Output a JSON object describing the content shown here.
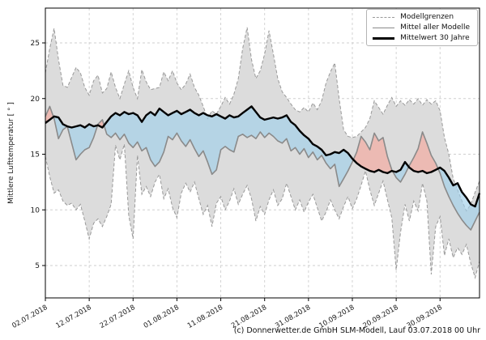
{
  "chart_data": {
    "type": "line",
    "title": "",
    "ylabel": "Mittlere Lufttemperatur [ ° ]",
    "xlabel": "",
    "caption": "(c) Donnerwetter.de GmbH SLM-Modell, Lauf 03.07.2018 00 Uhr",
    "grid": true,
    "legend_position": "upper right",
    "legend": [
      {
        "label": "Modellgrenzen",
        "style": "dashed-gray"
      },
      {
        "label": "Mittel aller Modelle",
        "style": "solid-gray"
      },
      {
        "label": "Mittelwert 30 Jahre",
        "style": "solid-black-thick"
      }
    ],
    "x_tick_labels": [
      "02.07.2018",
      "12.07.2018",
      "22.07.2018",
      "01.08.2018",
      "11.08.2018",
      "21.08.2018",
      "31.08.2018",
      "10.09.2018",
      "20.09.2018",
      "30.09.2018"
    ],
    "x_tick_days": [
      0,
      10,
      20,
      30,
      40,
      50,
      60,
      70,
      80,
      90
    ],
    "y_ticks": [
      5,
      10,
      15,
      20,
      25
    ],
    "ylim": [
      2.0,
      28.0
    ],
    "colors": {
      "band_fill": "#dcdcdc",
      "band_edge": "#999999",
      "model_mean_line": "#8a8a8a",
      "climate_mean_line": "#000000",
      "warm_fill": "#f5a79d",
      "cold_fill": "#9fd0ea",
      "fill_opacity": 0.65,
      "grid_line": "#cfcfcf"
    },
    "series": [
      {
        "name": "Modellgrenzen oben",
        "role": "upper_bound",
        "values": [
          22.3,
          24.5,
          26.3,
          23.5,
          21.2,
          21.0,
          21.9,
          22.8,
          22.3,
          21.0,
          20.3,
          21.6,
          22.1,
          20.5,
          20.9,
          22.4,
          21.0,
          20.0,
          21.3,
          22.5,
          21.0,
          20.0,
          22.6,
          21.5,
          20.8,
          20.9,
          21.0,
          22.4,
          21.6,
          22.5,
          21.4,
          20.8,
          21.3,
          22.2,
          21.0,
          20.3,
          19.3,
          18.2,
          18.9,
          18.6,
          19.3,
          20.1,
          19.5,
          20.4,
          21.8,
          24.5,
          26.4,
          23.5,
          21.8,
          22.5,
          24.0,
          26.1,
          24.0,
          21.8,
          20.6,
          20.1,
          19.5,
          19.0,
          18.8,
          19.2,
          18.8,
          19.6,
          19.0,
          19.8,
          21.4,
          22.4,
          23.2,
          20.0,
          17.2,
          16.6,
          16.5,
          16.6,
          17.0,
          17.4,
          18.2,
          19.8,
          19.2,
          18.6,
          19.4,
          20.1,
          19.3,
          19.8,
          19.4,
          19.9,
          19.5,
          20.0,
          19.4,
          19.9,
          19.5,
          19.8,
          18.9,
          16.5,
          15.0,
          12.8,
          11.8,
          10.8,
          9.9,
          10.5,
          11.6,
          12.6
        ]
      },
      {
        "name": "Modellgrenzen unten",
        "role": "lower_bound",
        "values": [
          14.8,
          13.0,
          11.5,
          11.8,
          10.8,
          10.4,
          10.6,
          10.0,
          10.5,
          9.0,
          7.4,
          8.8,
          9.2,
          8.5,
          9.4,
          10.5,
          15.8,
          14.5,
          15.9,
          9.5,
          7.4,
          14.9,
          11.4,
          12.1,
          11.2,
          12.5,
          13.2,
          11.0,
          11.9,
          10.2,
          9.3,
          11.5,
          12.4,
          11.6,
          12.5,
          11.0,
          9.6,
          10.4,
          8.5,
          10.6,
          11.2,
          10.0,
          10.8,
          11.9,
          10.5,
          11.4,
          12.2,
          11.0,
          9.0,
          10.3,
          9.6,
          10.9,
          11.8,
          10.4,
          11.0,
          12.4,
          11.2,
          10.0,
          10.9,
          9.8,
          10.7,
          11.4,
          10.2,
          9.0,
          9.8,
          10.9,
          10.0,
          9.2,
          10.3,
          11.2,
          10.1,
          11.0,
          12.2,
          13.5,
          11.8,
          10.4,
          11.5,
          12.6,
          10.9,
          9.3,
          4.6,
          8.0,
          10.5,
          9.0,
          10.8,
          9.9,
          12.4,
          10.8,
          4.2,
          8.5,
          9.4,
          5.9,
          7.4,
          5.7,
          6.6,
          6.0,
          6.9,
          5.2,
          3.9,
          5.4
        ]
      },
      {
        "name": "Mittel aller Modelle",
        "role": "model_mean",
        "values": [
          18.4,
          19.3,
          18.2,
          16.4,
          17.2,
          17.5,
          16.0,
          14.5,
          15.0,
          15.4,
          15.6,
          16.5,
          17.7,
          18.1,
          16.8,
          16.5,
          16.9,
          16.3,
          16.8,
          16.0,
          15.6,
          16.1,
          15.3,
          15.6,
          14.5,
          13.9,
          14.3,
          15.2,
          16.6,
          16.3,
          16.9,
          16.2,
          15.7,
          16.3,
          15.5,
          14.8,
          15.3,
          14.3,
          13.2,
          13.6,
          15.4,
          15.7,
          15.4,
          15.2,
          16.6,
          16.8,
          16.5,
          16.7,
          16.4,
          17.0,
          16.5,
          16.9,
          16.6,
          16.2,
          16.0,
          16.4,
          15.3,
          15.6,
          15.0,
          15.5,
          14.7,
          15.2,
          14.5,
          14.9,
          14.2,
          13.7,
          14.1,
          12.1,
          12.8,
          13.5,
          14.3,
          15.2,
          16.6,
          16.1,
          15.4,
          16.9,
          16.2,
          16.5,
          14.8,
          13.6,
          12.9,
          12.5,
          13.2,
          14.0,
          14.7,
          15.5,
          17.0,
          16.0,
          14.9,
          14.2,
          13.3,
          12.1,
          11.2,
          10.4,
          9.7,
          9.1,
          8.6,
          8.2,
          9.0,
          9.8
        ]
      },
      {
        "name": "Mittelwert 30 Jahre",
        "role": "climate_mean",
        "values": [
          17.8,
          18.1,
          18.4,
          18.3,
          17.7,
          17.5,
          17.4,
          17.5,
          17.6,
          17.4,
          17.7,
          17.5,
          17.6,
          17.4,
          17.9,
          18.4,
          18.7,
          18.5,
          18.8,
          18.6,
          18.7,
          18.5,
          17.9,
          18.5,
          18.8,
          18.5,
          19.1,
          18.8,
          18.5,
          18.7,
          18.9,
          18.6,
          18.8,
          19.0,
          18.7,
          18.5,
          18.7,
          18.5,
          18.4,
          18.6,
          18.4,
          18.2,
          18.5,
          18.3,
          18.4,
          18.7,
          19.0,
          19.3,
          18.8,
          18.3,
          18.1,
          18.2,
          18.3,
          18.2,
          18.3,
          18.5,
          17.9,
          17.6,
          17.1,
          16.7,
          16.4,
          15.9,
          15.7,
          15.4,
          14.9,
          15.0,
          15.2,
          15.1,
          15.4,
          15.1,
          14.6,
          14.2,
          13.9,
          13.7,
          13.5,
          13.4,
          13.6,
          13.4,
          13.3,
          13.5,
          13.4,
          13.6,
          14.3,
          13.8,
          13.5,
          13.4,
          13.5,
          13.3,
          13.4,
          13.6,
          13.8,
          13.5,
          12.9,
          12.2,
          12.4,
          11.6,
          11.1,
          10.5,
          10.3,
          11.5
        ]
      }
    ]
  }
}
